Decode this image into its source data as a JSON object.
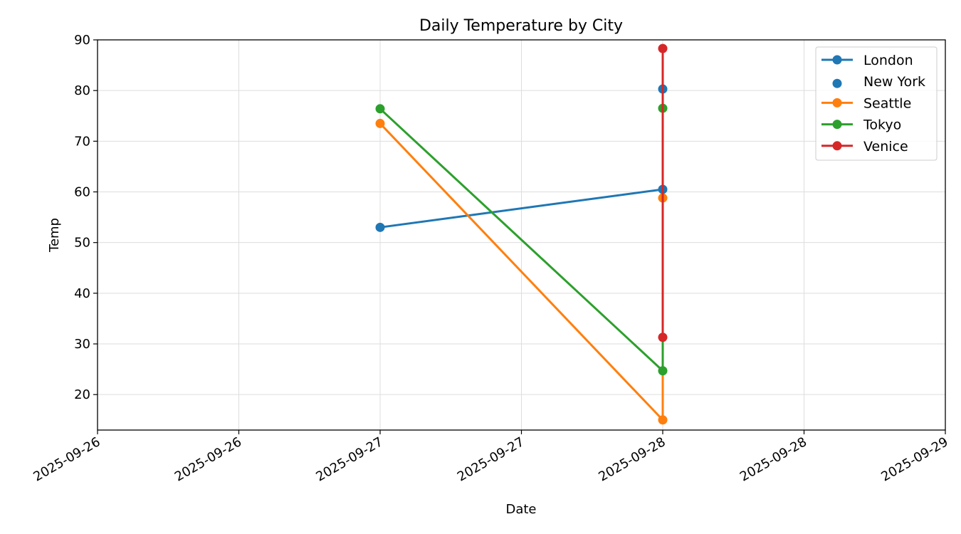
{
  "chart_data": {
    "type": "line",
    "title": "Daily Temperature by City",
    "xlabel": "Date",
    "ylabel": "Temp",
    "x_ticks": [
      "2025-09-26",
      "2025-09-26",
      "2025-09-27",
      "2025-09-27",
      "2025-09-28",
      "2025-09-28",
      "2025-09-29"
    ],
    "y_ticks": [
      "20",
      "30",
      "40",
      "50",
      "60",
      "70",
      "80",
      "90"
    ],
    "x_range": [
      "2025-09-26 00:00",
      "2025-09-29 00:00"
    ],
    "ylim": [
      13,
      90
    ],
    "grid": true,
    "legend_position": "top-right",
    "series": [
      {
        "name": "London",
        "style": "line-marker",
        "color": "#1f77b4",
        "points": [
          {
            "x": "2025-09-27 00:00",
            "y": 53.0
          },
          {
            "x": "2025-09-28 00:00",
            "y": 60.5
          }
        ]
      },
      {
        "name": "New York",
        "style": "marker",
        "color": "#1f77b4",
        "points": [
          {
            "x": "2025-09-28 00:00",
            "y": 80.3
          }
        ]
      },
      {
        "name": "Seattle",
        "style": "line-marker",
        "color": "#ff7f0e",
        "points": [
          {
            "x": "2025-09-27 00:00",
            "y": 73.5
          },
          {
            "x": "2025-09-28 00:00",
            "y": 15.0
          },
          {
            "x": "2025-09-28 00:00",
            "y": 58.8
          }
        ]
      },
      {
        "name": "Tokyo",
        "style": "line-marker",
        "color": "#2ca02c",
        "points": [
          {
            "x": "2025-09-27 00:00",
            "y": 76.4
          },
          {
            "x": "2025-09-28 00:00",
            "y": 24.7
          },
          {
            "x": "2025-09-28 00:00",
            "y": 76.5
          }
        ]
      },
      {
        "name": "Venice",
        "style": "line-marker",
        "color": "#d62728",
        "points": [
          {
            "x": "2025-09-28 00:00",
            "y": 88.3
          },
          {
            "x": "2025-09-28 00:00",
            "y": 31.3
          }
        ]
      }
    ]
  }
}
